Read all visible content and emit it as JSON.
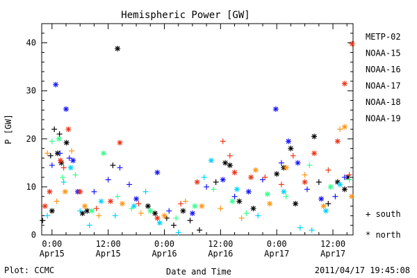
{
  "chart_data": {
    "type": "scatter",
    "title": "Hemispheric Power [GW]",
    "xlabel": "Date and Time",
    "ylabel": "P [GW]",
    "x_start_hours_ticks_ref": "Apr15 00:00",
    "xlim_hours": [
      -2.2,
      64.3
    ],
    "ylim": [
      0,
      44
    ],
    "y_ticks": [
      0,
      10,
      20,
      30,
      40
    ],
    "x_ticks": [
      {
        "hour": 0,
        "time": "0:00",
        "date": "Apr15"
      },
      {
        "hour": 12,
        "time": "12:00",
        "date": "Apr15"
      },
      {
        "hour": 24,
        "time": "0:00",
        "date": "Apr16"
      },
      {
        "hour": 36,
        "time": "12:00",
        "date": "Apr16"
      },
      {
        "hour": 48,
        "time": "0:00",
        "date": "Apr17"
      },
      {
        "hour": 60,
        "time": "12:00",
        "date": "Apr17"
      }
    ],
    "marker_legend": {
      "south": "+ south",
      "north": "* north"
    },
    "series": [
      {
        "name": "METP-02",
        "color": "#000000",
        "points": [
          {
            "x": -0.3,
            "y": 16.5,
            "m": "south"
          },
          {
            "x": 0.5,
            "y": 22.0,
            "m": "south"
          },
          {
            "x": 1.2,
            "y": 17.0,
            "m": "north"
          },
          {
            "x": 1.6,
            "y": 21.0,
            "m": "south"
          },
          {
            "x": 2.0,
            "y": 15.0,
            "m": "north"
          },
          {
            "x": 3.1,
            "y": 19.2,
            "m": "north"
          },
          {
            "x": 0.0,
            "y": 5.0,
            "m": "north"
          },
          {
            "x": -2.0,
            "y": 3.0,
            "m": "south"
          },
          {
            "x": 6.5,
            "y": 4.5,
            "m": "north"
          },
          {
            "x": 7.5,
            "y": 5.0,
            "m": "north"
          },
          {
            "x": 14.0,
            "y": 38.8,
            "m": "north"
          },
          {
            "x": 13.0,
            "y": 14.5,
            "m": "south"
          },
          {
            "x": 20.5,
            "y": 6.0,
            "m": "north"
          },
          {
            "x": 22.0,
            "y": 4.5,
            "m": "north"
          },
          {
            "x": 24.5,
            "y": 3.5,
            "m": "south"
          },
          {
            "x": 26.0,
            "y": 2.0,
            "m": "south"
          },
          {
            "x": 28.0,
            "y": 5.0,
            "m": "north"
          },
          {
            "x": 29.5,
            "y": 3.0,
            "m": "south"
          },
          {
            "x": 31.5,
            "y": 1.0,
            "m": "south"
          },
          {
            "x": 35.0,
            "y": 11.0,
            "m": "south"
          },
          {
            "x": 37.0,
            "y": 15.0,
            "m": "north"
          },
          {
            "x": 38.0,
            "y": 14.5,
            "m": "north"
          },
          {
            "x": 40.0,
            "y": 7.0,
            "m": "north"
          },
          {
            "x": 43.0,
            "y": 5.5,
            "m": "north"
          },
          {
            "x": 48.0,
            "y": 12.7,
            "m": "north"
          },
          {
            "x": 49.5,
            "y": 14.0,
            "m": "north"
          },
          {
            "x": 51.0,
            "y": 18.0,
            "m": "north"
          },
          {
            "x": 52.0,
            "y": 6.5,
            "m": "north"
          },
          {
            "x": 56.0,
            "y": 20.5,
            "m": "north"
          },
          {
            "x": 57.0,
            "y": 11.0,
            "m": "south"
          },
          {
            "x": 61.0,
            "y": 11.0,
            "m": "north"
          },
          {
            "x": 62.5,
            "y": 9.5,
            "m": "north"
          },
          {
            "x": 63.2,
            "y": 12.0,
            "m": "north"
          },
          {
            "x": 59.0,
            "y": 6.5,
            "m": "south"
          }
        ]
      },
      {
        "name": "NOAA-15",
        "color": "#1414ff",
        "points": [
          {
            "x": 0.0,
            "y": 14.5,
            "m": "south"
          },
          {
            "x": 0.8,
            "y": 31.3,
            "m": "north"
          },
          {
            "x": 1.7,
            "y": 17.0,
            "m": "south"
          },
          {
            "x": 3.0,
            "y": 26.2,
            "m": "north"
          },
          {
            "x": 3.7,
            "y": 16.0,
            "m": "south"
          },
          {
            "x": 4.5,
            "y": 15.5,
            "m": "north"
          },
          {
            "x": 5.5,
            "y": 9.0,
            "m": "north"
          },
          {
            "x": 9.0,
            "y": 9.0,
            "m": "south"
          },
          {
            "x": 12.0,
            "y": 11.5,
            "m": "south"
          },
          {
            "x": 14.5,
            "y": 14.0,
            "m": "south"
          },
          {
            "x": 16.5,
            "y": 10.5,
            "m": "south"
          },
          {
            "x": 18.0,
            "y": 7.5,
            "m": "north"
          },
          {
            "x": 22.5,
            "y": 13.0,
            "m": "north"
          },
          {
            "x": 25.0,
            "y": 5.0,
            "m": "south"
          },
          {
            "x": 30.0,
            "y": 4.5,
            "m": "north"
          },
          {
            "x": 33.0,
            "y": 10.0,
            "m": "south"
          },
          {
            "x": 36.5,
            "y": 11.5,
            "m": "north"
          },
          {
            "x": 39.0,
            "y": 8.0,
            "m": "south"
          },
          {
            "x": 42.0,
            "y": 9.0,
            "m": "north"
          },
          {
            "x": 45.0,
            "y": 11.5,
            "m": "south"
          },
          {
            "x": 47.8,
            "y": 26.2,
            "m": "north"
          },
          {
            "x": 49.0,
            "y": 15.0,
            "m": "south"
          },
          {
            "x": 50.5,
            "y": 19.5,
            "m": "north"
          },
          {
            "x": 52.5,
            "y": 15.0,
            "m": "north"
          },
          {
            "x": 54.5,
            "y": 9.5,
            "m": "south"
          },
          {
            "x": 57.5,
            "y": 7.5,
            "m": "north"
          },
          {
            "x": 60.5,
            "y": 8.0,
            "m": "south"
          },
          {
            "x": 62.5,
            "y": 12.0,
            "m": "south"
          }
        ]
      },
      {
        "name": "NOAA-16",
        "color": "#00d2ff",
        "points": [
          {
            "x": -1.0,
            "y": 4.0,
            "m": "south"
          },
          {
            "x": 2.5,
            "y": 11.0,
            "m": "south"
          },
          {
            "x": 4.0,
            "y": 14.0,
            "m": "north"
          },
          {
            "x": 6.0,
            "y": 5.0,
            "m": "south"
          },
          {
            "x": 8.0,
            "y": 2.0,
            "m": "south"
          },
          {
            "x": 10.5,
            "y": 7.0,
            "m": "north"
          },
          {
            "x": 13.5,
            "y": 4.0,
            "m": "south"
          },
          {
            "x": 17.5,
            "y": 6.0,
            "m": "north"
          },
          {
            "x": 20.0,
            "y": 9.0,
            "m": "south"
          },
          {
            "x": 23.0,
            "y": 2.5,
            "m": "north"
          },
          {
            "x": 27.0,
            "y": 0.5,
            "m": "south"
          },
          {
            "x": 32.5,
            "y": 12.0,
            "m": "south"
          },
          {
            "x": 34.0,
            "y": 15.5,
            "m": "north"
          },
          {
            "x": 39.5,
            "y": 9.5,
            "m": "north"
          },
          {
            "x": 44.0,
            "y": 4.0,
            "m": "south"
          },
          {
            "x": 49.5,
            "y": 9.0,
            "m": "north"
          },
          {
            "x": 53.0,
            "y": 1.5,
            "m": "south"
          },
          {
            "x": 55.5,
            "y": 1.0,
            "m": "south"
          },
          {
            "x": 58.5,
            "y": 5.0,
            "m": "north"
          },
          {
            "x": 61.5,
            "y": 10.5,
            "m": "north"
          }
        ]
      },
      {
        "name": "NOAA-17",
        "color": "#32ff8c",
        "points": [
          {
            "x": 0.0,
            "y": 19.5,
            "m": "south"
          },
          {
            "x": 1.5,
            "y": 20.0,
            "m": "north"
          },
          {
            "x": 2.3,
            "y": 12.0,
            "m": "south"
          },
          {
            "x": 5.0,
            "y": 12.5,
            "m": "south"
          },
          {
            "x": 8.5,
            "y": 5.0,
            "m": "north"
          },
          {
            "x": 11.0,
            "y": 17.0,
            "m": "north"
          },
          {
            "x": 14.0,
            "y": 8.0,
            "m": "south"
          },
          {
            "x": 17.0,
            "y": 5.5,
            "m": "south"
          },
          {
            "x": 21.0,
            "y": 5.0,
            "m": "north"
          },
          {
            "x": 26.5,
            "y": 3.5,
            "m": "south"
          },
          {
            "x": 30.5,
            "y": 6.0,
            "m": "north"
          },
          {
            "x": 34.5,
            "y": 9.5,
            "m": "south"
          },
          {
            "x": 38.5,
            "y": 7.0,
            "m": "north"
          },
          {
            "x": 41.5,
            "y": 4.5,
            "m": "south"
          },
          {
            "x": 46.0,
            "y": 8.5,
            "m": "north"
          },
          {
            "x": 50.0,
            "y": 8.0,
            "m": "south"
          },
          {
            "x": 55.0,
            "y": 14.5,
            "m": "south"
          },
          {
            "x": 59.5,
            "y": 10.0,
            "m": "north"
          },
          {
            "x": 63.5,
            "y": 11.5,
            "m": "south"
          }
        ]
      },
      {
        "name": "NOAA-18",
        "color": "#ff9614",
        "points": [
          {
            "x": -1.0,
            "y": 17.0,
            "m": "south"
          },
          {
            "x": 1.0,
            "y": 7.0,
            "m": "south"
          },
          {
            "x": 2.8,
            "y": 9.0,
            "m": "north"
          },
          {
            "x": 4.2,
            "y": 17.5,
            "m": "south"
          },
          {
            "x": 7.0,
            "y": 6.0,
            "m": "north"
          },
          {
            "x": 10.0,
            "y": 4.0,
            "m": "south"
          },
          {
            "x": 15.0,
            "y": 6.5,
            "m": "north"
          },
          {
            "x": 19.0,
            "y": 4.5,
            "m": "south"
          },
          {
            "x": 24.0,
            "y": 4.0,
            "m": "north"
          },
          {
            "x": 28.5,
            "y": 7.0,
            "m": "south"
          },
          {
            "x": 32.0,
            "y": 6.0,
            "m": "north"
          },
          {
            "x": 36.0,
            "y": 5.5,
            "m": "south"
          },
          {
            "x": 40.5,
            "y": 3.5,
            "m": "south"
          },
          {
            "x": 43.5,
            "y": 13.5,
            "m": "north"
          },
          {
            "x": 46.5,
            "y": 6.5,
            "m": "north"
          },
          {
            "x": 50.0,
            "y": 14.0,
            "m": "north"
          },
          {
            "x": 54.0,
            "y": 12.5,
            "m": "south"
          },
          {
            "x": 58.0,
            "y": 6.0,
            "m": "north"
          },
          {
            "x": 61.5,
            "y": 22.0,
            "m": "south"
          },
          {
            "x": 62.5,
            "y": 22.5,
            "m": "north"
          },
          {
            "x": 64.0,
            "y": 8.0,
            "m": "north"
          }
        ]
      },
      {
        "name": "NOAA-19",
        "color": "#f03214",
        "points": [
          {
            "x": -1.5,
            "y": 6.0,
            "m": "north"
          },
          {
            "x": -0.5,
            "y": 9.0,
            "m": "north"
          },
          {
            "x": 1.8,
            "y": 15.5,
            "m": "north"
          },
          {
            "x": 2.5,
            "y": 14.0,
            "m": "south"
          },
          {
            "x": 3.5,
            "y": 22.0,
            "m": "north"
          },
          {
            "x": 6.0,
            "y": 9.0,
            "m": "north"
          },
          {
            "x": 9.5,
            "y": 5.5,
            "m": "south"
          },
          {
            "x": 12.5,
            "y": 7.0,
            "m": "north"
          },
          {
            "x": 14.5,
            "y": 19.2,
            "m": "north"
          },
          {
            "x": 18.5,
            "y": 6.5,
            "m": "south"
          },
          {
            "x": 22.5,
            "y": 3.5,
            "m": "north"
          },
          {
            "x": 27.5,
            "y": 6.5,
            "m": "south"
          },
          {
            "x": 31.0,
            "y": 11.0,
            "m": "north"
          },
          {
            "x": 36.5,
            "y": 19.5,
            "m": "south"
          },
          {
            "x": 38.0,
            "y": 16.5,
            "m": "south"
          },
          {
            "x": 39.0,
            "y": 13.0,
            "m": "north"
          },
          {
            "x": 42.5,
            "y": 12.0,
            "m": "north"
          },
          {
            "x": 45.5,
            "y": 12.0,
            "m": "south"
          },
          {
            "x": 49.0,
            "y": 10.5,
            "m": "south"
          },
          {
            "x": 51.5,
            "y": 16.5,
            "m": "south"
          },
          {
            "x": 54.0,
            "y": 11.0,
            "m": "north"
          },
          {
            "x": 56.0,
            "y": 17.0,
            "m": "north"
          },
          {
            "x": 59.0,
            "y": 13.5,
            "m": "south"
          },
          {
            "x": 61.0,
            "y": 19.5,
            "m": "north"
          },
          {
            "x": 62.5,
            "y": 31.5,
            "m": "north"
          },
          {
            "x": 63.5,
            "y": 12.5,
            "m": "south"
          },
          {
            "x": 64.1,
            "y": 39.8,
            "m": "north"
          }
        ]
      }
    ],
    "grid": false,
    "legend_position": "right"
  },
  "footer": {
    "left": "Plot: CCMC",
    "right": "2011/04/17 19:45:08"
  }
}
